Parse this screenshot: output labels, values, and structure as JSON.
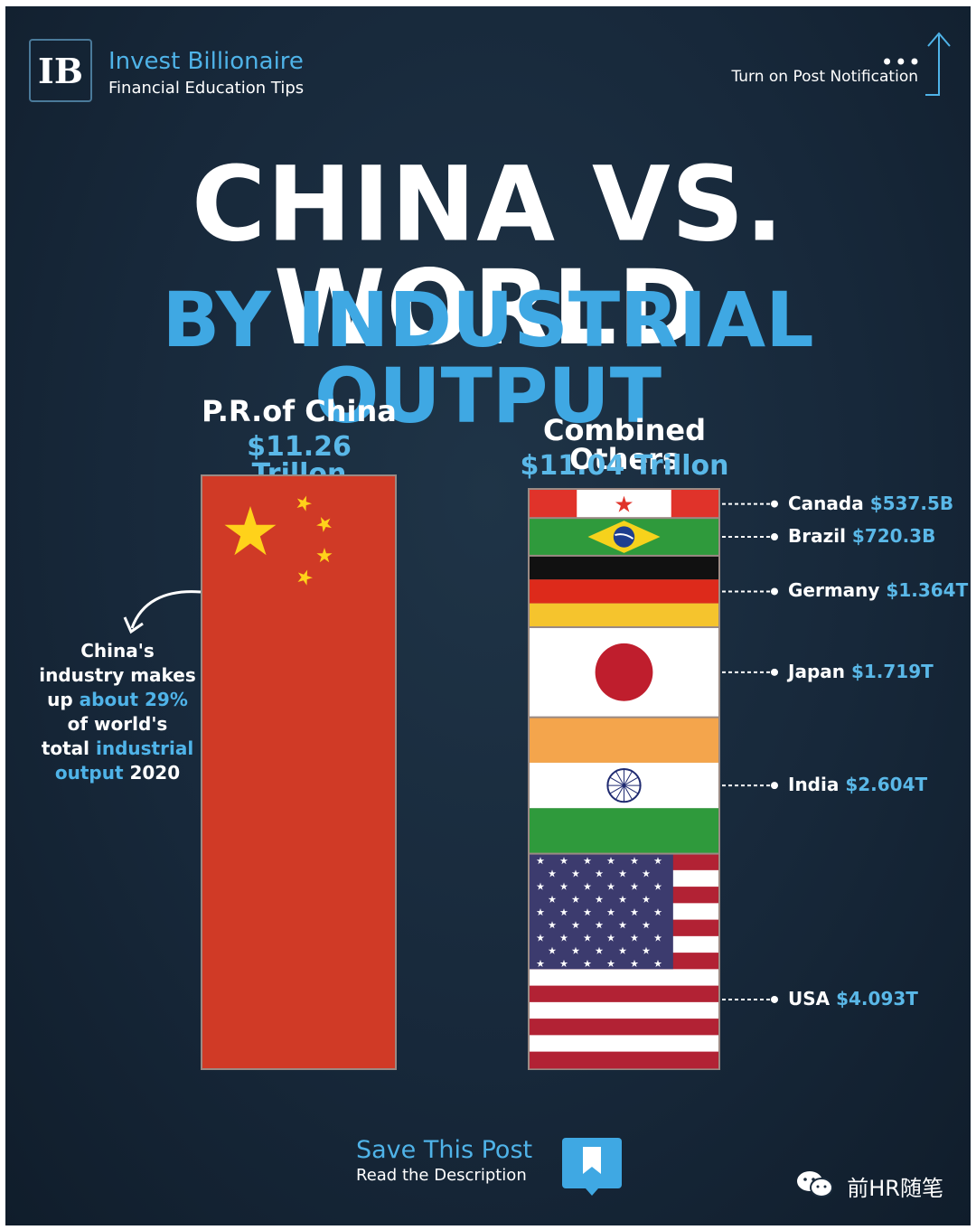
{
  "brand": {
    "logo_letter": "IB",
    "name": "Invest Billionaire",
    "tagline": "Financial Education Tips"
  },
  "header": {
    "notification": "Turn on Post Notification",
    "dots": "•••"
  },
  "title": {
    "line1": "CHINA VS. WORLD",
    "line2": "BY INDUSTRIAL OUTPUT"
  },
  "chart_data": {
    "type": "bar",
    "title": "CHINA VS. WORLD BY INDUSTRIAL OUTPUT",
    "unit": "USD",
    "china": {
      "name": "P.R.of China",
      "label": "$11.26 Trillon",
      "value": 11.26
    },
    "others": {
      "name": "Combined Others",
      "label": "$11.04 Trillon",
      "value": 11.04,
      "segments": [
        {
          "name": "Canada",
          "label": "$537.5B",
          "value": 0.5375
        },
        {
          "name": "Brazil",
          "label": "$720.3B",
          "value": 0.7203
        },
        {
          "name": "Germany",
          "label": "$1.364T",
          "value": 1.364
        },
        {
          "name": "Japan",
          "label": "$1.719T",
          "value": 1.719
        },
        {
          "name": "India",
          "label": "$2.604T",
          "value": 2.604
        },
        {
          "name": "USA",
          "label": "$4.093T",
          "value": 4.093
        }
      ]
    }
  },
  "note": {
    "t1": "China's",
    "t2": "industry makes",
    "t3": "up",
    "t4": "about 29%",
    "t5": "of world's",
    "t6": "total",
    "t7": "industrial",
    "t8": "output",
    "t9": "2020"
  },
  "footer": {
    "save": "Save This Post",
    "read": "Read the Description",
    "watermark": "前HR随笔"
  },
  "colors": {
    "accent": "#3fa8e3",
    "china_red": "#d03a26",
    "star_yellow": "#ffd21a"
  }
}
